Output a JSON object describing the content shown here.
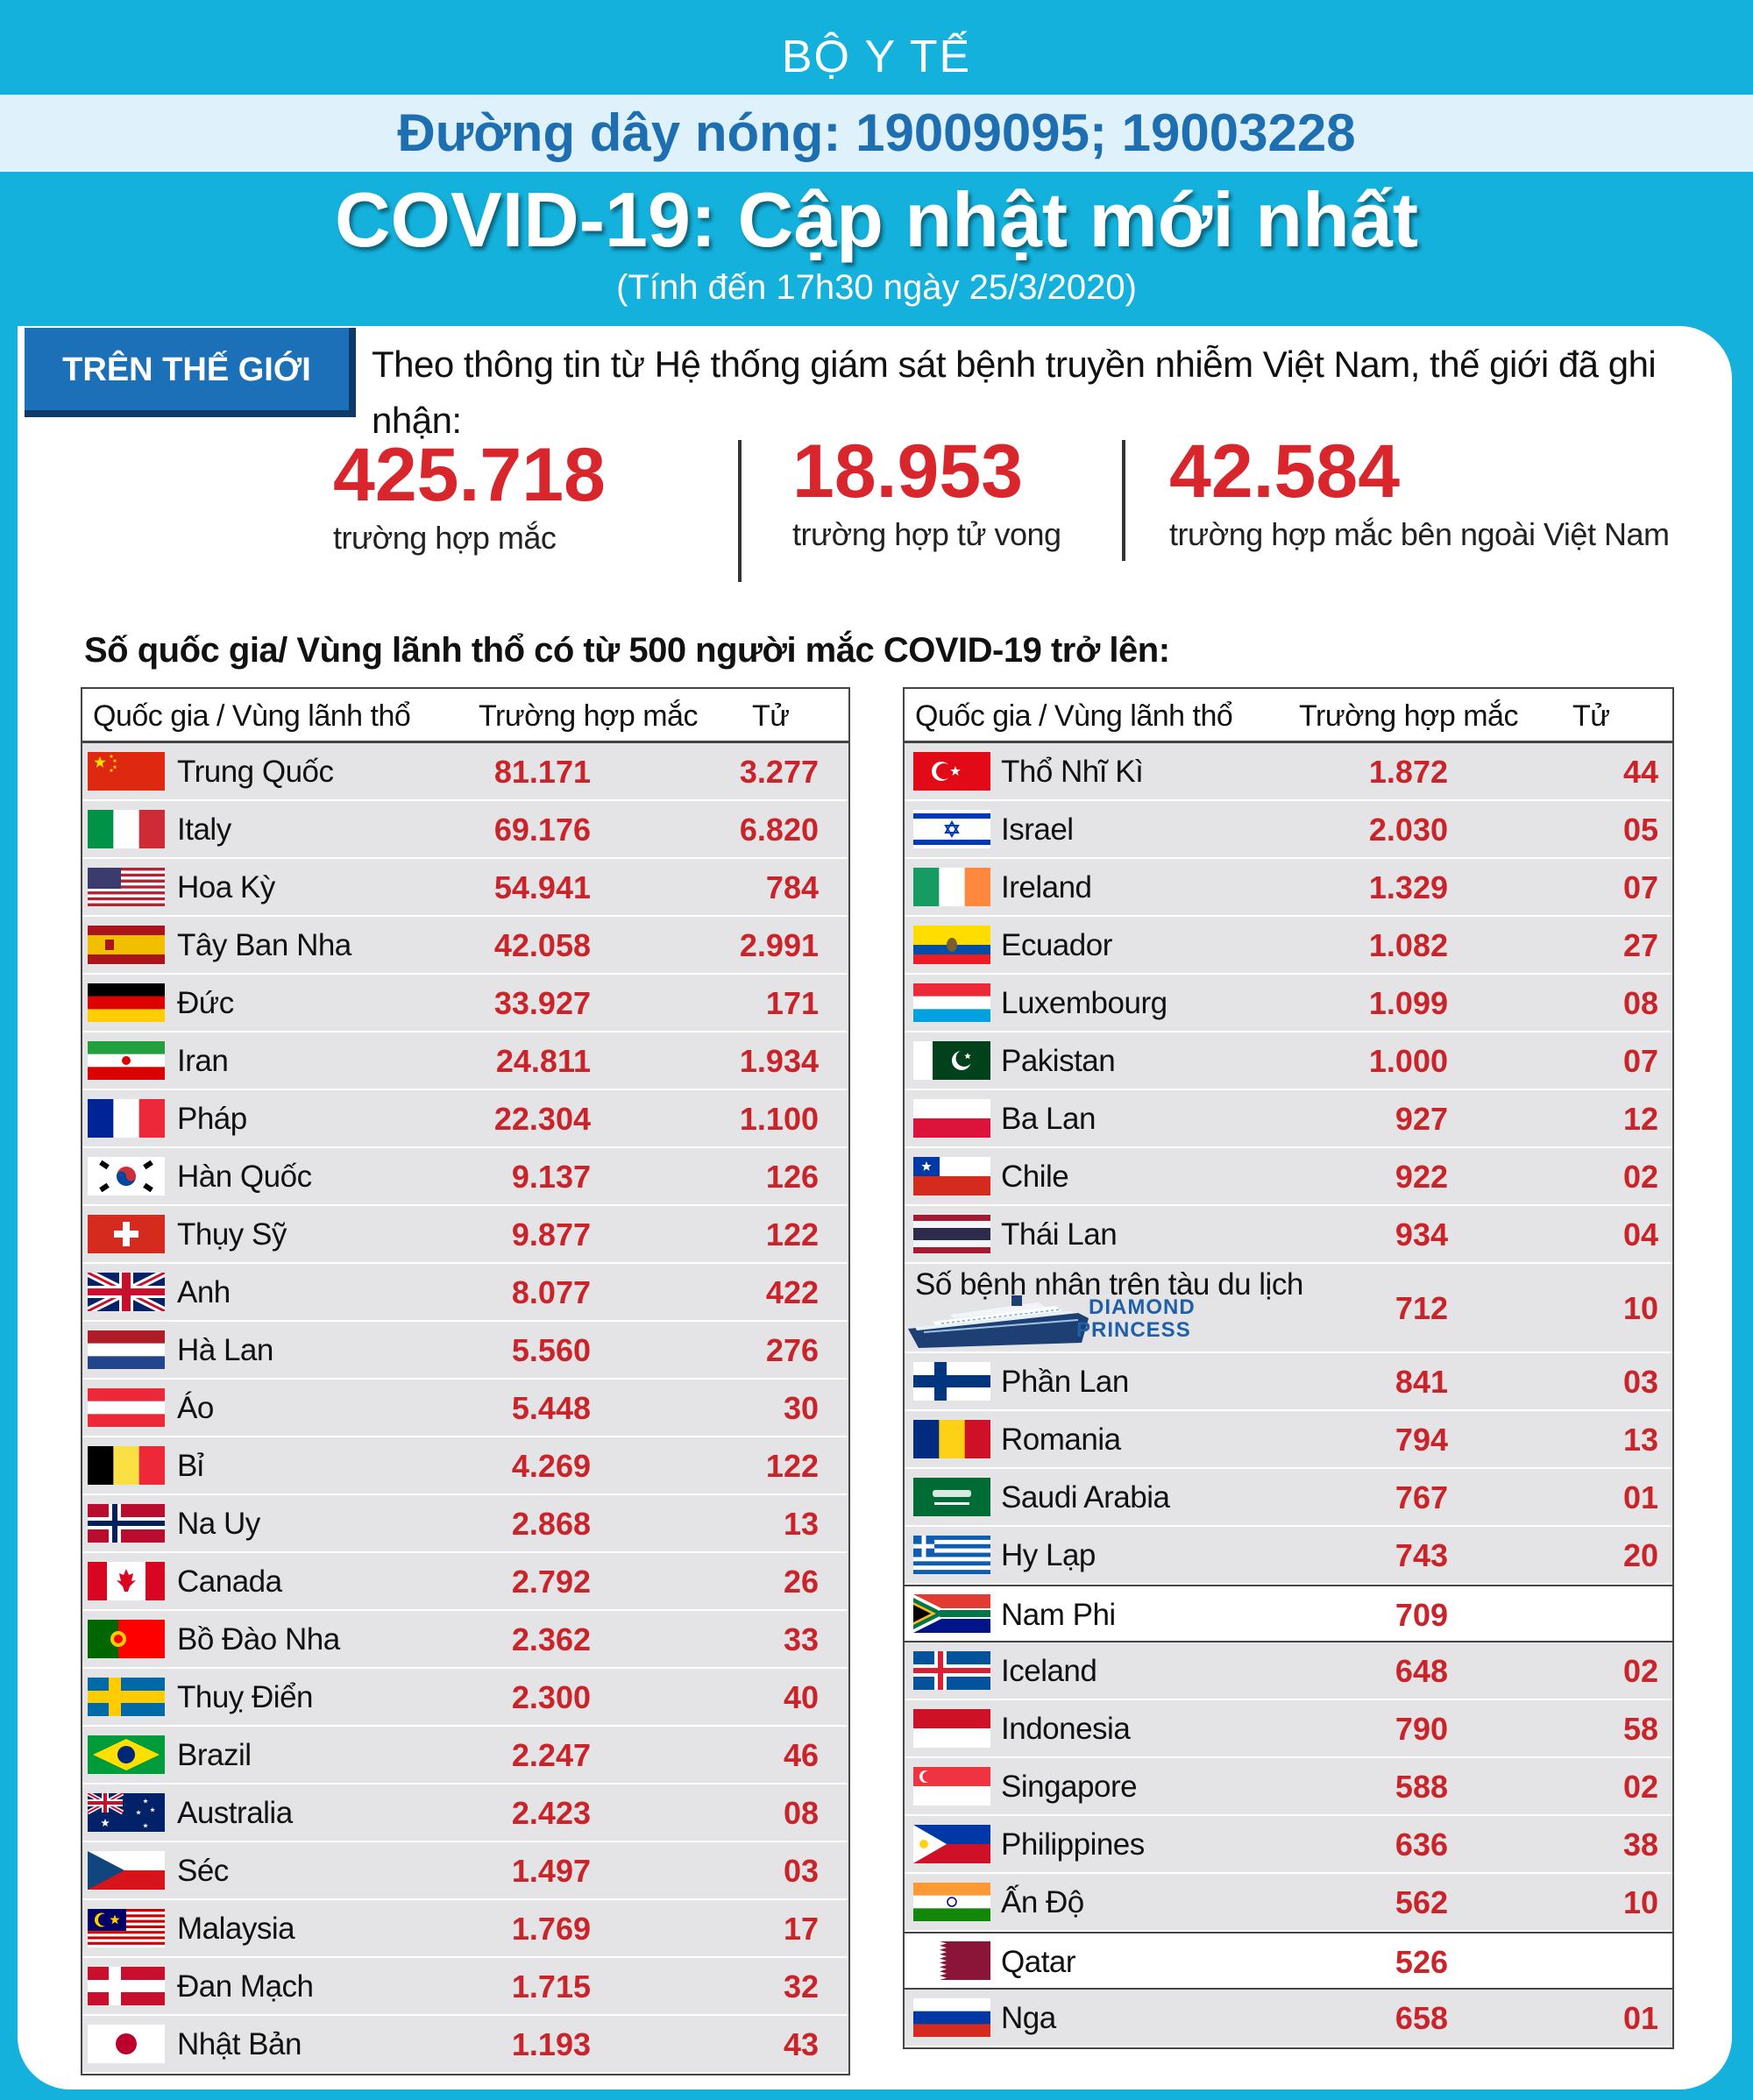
{
  "header": {
    "org": "BỘ Y TẾ",
    "hotline": "Đường dây nóng: 19009095; 19003228",
    "title": "COVID-19: Cập nhật mới nhất",
    "subtitle": "(Tính đến 17h30  ngày 25/3/2020)"
  },
  "world": {
    "tag": "TRÊN THẾ GIỚI",
    "intro": "Theo thông tin từ Hệ thống giám sát bệnh truyền nhiễm Việt Nam, thế giới đã ghi nhận:",
    "stats": [
      {
        "value": "425.718",
        "label": "trường hợp mắc"
      },
      {
        "value": "18.953",
        "label": "trường hợp tử vong"
      },
      {
        "value": "42.584",
        "label": "trường hợp  mắc bên ngoài Việt Nam"
      }
    ]
  },
  "section_title": "Số quốc gia/ Vùng lãnh thổ có từ 500 người  mắc COVID-19 trở lên:",
  "table_headers": {
    "country": "Quốc gia / Vùng lãnh thổ",
    "cases": "Trường hợp mắc",
    "deaths": "Tử vong"
  },
  "left_table": [
    {
      "flag": "china",
      "country": "Trung Quốc",
      "cases": "81.171",
      "deaths": "3.277"
    },
    {
      "flag": "italy",
      "country": "Italy",
      "cases": "69.176",
      "deaths": "6.820"
    },
    {
      "flag": "usa",
      "country": "Hoa Kỳ",
      "cases": "54.941",
      "deaths": "784"
    },
    {
      "flag": "spain",
      "country": "Tây Ban Nha",
      "cases": "42.058",
      "deaths": "2.991"
    },
    {
      "flag": "germany",
      "country": "Đức",
      "cases": "33.927",
      "deaths": "171"
    },
    {
      "flag": "iran",
      "country": "Iran",
      "cases": "24.811",
      "deaths": "1.934"
    },
    {
      "flag": "france",
      "country": "Pháp",
      "cases": "22.304",
      "deaths": "1.100"
    },
    {
      "flag": "south-korea",
      "country": "Hàn Quốc",
      "cases": "9.137",
      "deaths": "126"
    },
    {
      "flag": "switzerland",
      "country": "Thụy Sỹ",
      "cases": "9.877",
      "deaths": "122"
    },
    {
      "flag": "uk",
      "country": "Anh",
      "cases": "8.077",
      "deaths": "422"
    },
    {
      "flag": "netherlands",
      "country": "Hà Lan",
      "cases": "5.560",
      "deaths": "276"
    },
    {
      "flag": "austria",
      "country": "Áo",
      "cases": "5.448",
      "deaths": "30"
    },
    {
      "flag": "belgium",
      "country": "Bỉ",
      "cases": "4.269",
      "deaths": "122"
    },
    {
      "flag": "norway",
      "country": "Na Uy",
      "cases": "2.868",
      "deaths": "13"
    },
    {
      "flag": "canada",
      "country": "Canada",
      "cases": "2.792",
      "deaths": "26"
    },
    {
      "flag": "portugal",
      "country": "Bồ Đào Nha",
      "cases": "2.362",
      "deaths": "33"
    },
    {
      "flag": "sweden",
      "country": "Thuỵ Điển",
      "cases": "2.300",
      "deaths": "40"
    },
    {
      "flag": "brazil",
      "country": "Brazil",
      "cases": "2.247",
      "deaths": "46"
    },
    {
      "flag": "australia",
      "country": "Australia",
      "cases": "2.423",
      "deaths": "08"
    },
    {
      "flag": "czech",
      "country": "Séc",
      "cases": "1.497",
      "deaths": "03"
    },
    {
      "flag": "malaysia",
      "country": "Malaysia",
      "cases": "1.769",
      "deaths": "17"
    },
    {
      "flag": "denmark",
      "country": "Đan Mạch",
      "cases": "1.715",
      "deaths": "32"
    },
    {
      "flag": "japan",
      "country": "Nhật Bản",
      "cases": "1.193",
      "deaths": "43"
    }
  ],
  "right_table": [
    {
      "flag": "turkey",
      "country": "Thổ Nhĩ Kì",
      "cases": "1.872",
      "deaths": "44"
    },
    {
      "flag": "israel",
      "country": "Israel",
      "cases": "2.030",
      "deaths": "05"
    },
    {
      "flag": "ireland",
      "country": "Ireland",
      "cases": "1.329",
      "deaths": "07"
    },
    {
      "flag": "ecuador",
      "country": "Ecuador",
      "cases": "1.082",
      "deaths": "27"
    },
    {
      "flag": "luxembourg",
      "country": "Luxembourg",
      "cases": "1.099",
      "deaths": "08"
    },
    {
      "flag": "pakistan",
      "country": "Pakistan",
      "cases": "1.000",
      "deaths": "07"
    },
    {
      "flag": "poland",
      "country": "Ba Lan",
      "cases": "927",
      "deaths": "12"
    },
    {
      "flag": "chile",
      "country": "Chile",
      "cases": "922",
      "deaths": "02"
    },
    {
      "flag": "thailand",
      "country": "Thái Lan",
      "cases": "934",
      "deaths": "04"
    },
    {
      "special": "diamond-princess",
      "country": "Số bệnh nhân trên tàu du lịch",
      "ship_line1": "DIAMOND",
      "ship_line2": "PRINCESS",
      "cases": "712",
      "deaths": "10"
    },
    {
      "flag": "finland",
      "country": "Phần Lan",
      "cases": "841",
      "deaths": "03"
    },
    {
      "flag": "romania",
      "country": "Romania",
      "cases": "794",
      "deaths": "13"
    },
    {
      "flag": "saudi-arabia",
      "country": "Saudi Arabia",
      "cases": "767",
      "deaths": "01"
    },
    {
      "flag": "greece",
      "country": "Hy Lạp",
      "cases": "743",
      "deaths": "20"
    },
    {
      "flag": "south-africa",
      "country": "Nam Phi",
      "cases": "709",
      "deaths": ""
    },
    {
      "flag": "iceland",
      "country": "Iceland",
      "cases": "648",
      "deaths": "02"
    },
    {
      "flag": "indonesia",
      "country": "Indonesia",
      "cases": "790",
      "deaths": "58"
    },
    {
      "flag": "singapore",
      "country": "Singapore",
      "cases": "588",
      "deaths": "02"
    },
    {
      "flag": "philippines",
      "country": "Philippines",
      "cases": "636",
      "deaths": "38"
    },
    {
      "flag": "india",
      "country": "Ấn Độ",
      "cases": "562",
      "deaths": "10"
    },
    {
      "flag": "qatar",
      "country": "Qatar",
      "cases": "526",
      "deaths": ""
    },
    {
      "flag": "russia",
      "country": "Nga",
      "cases": "658",
      "deaths": "01"
    }
  ],
  "colors": {
    "background": "#14b1dc",
    "numbers": "#d8262c",
    "hotline": "#1d6fb1",
    "tag": "#1c70b8"
  }
}
